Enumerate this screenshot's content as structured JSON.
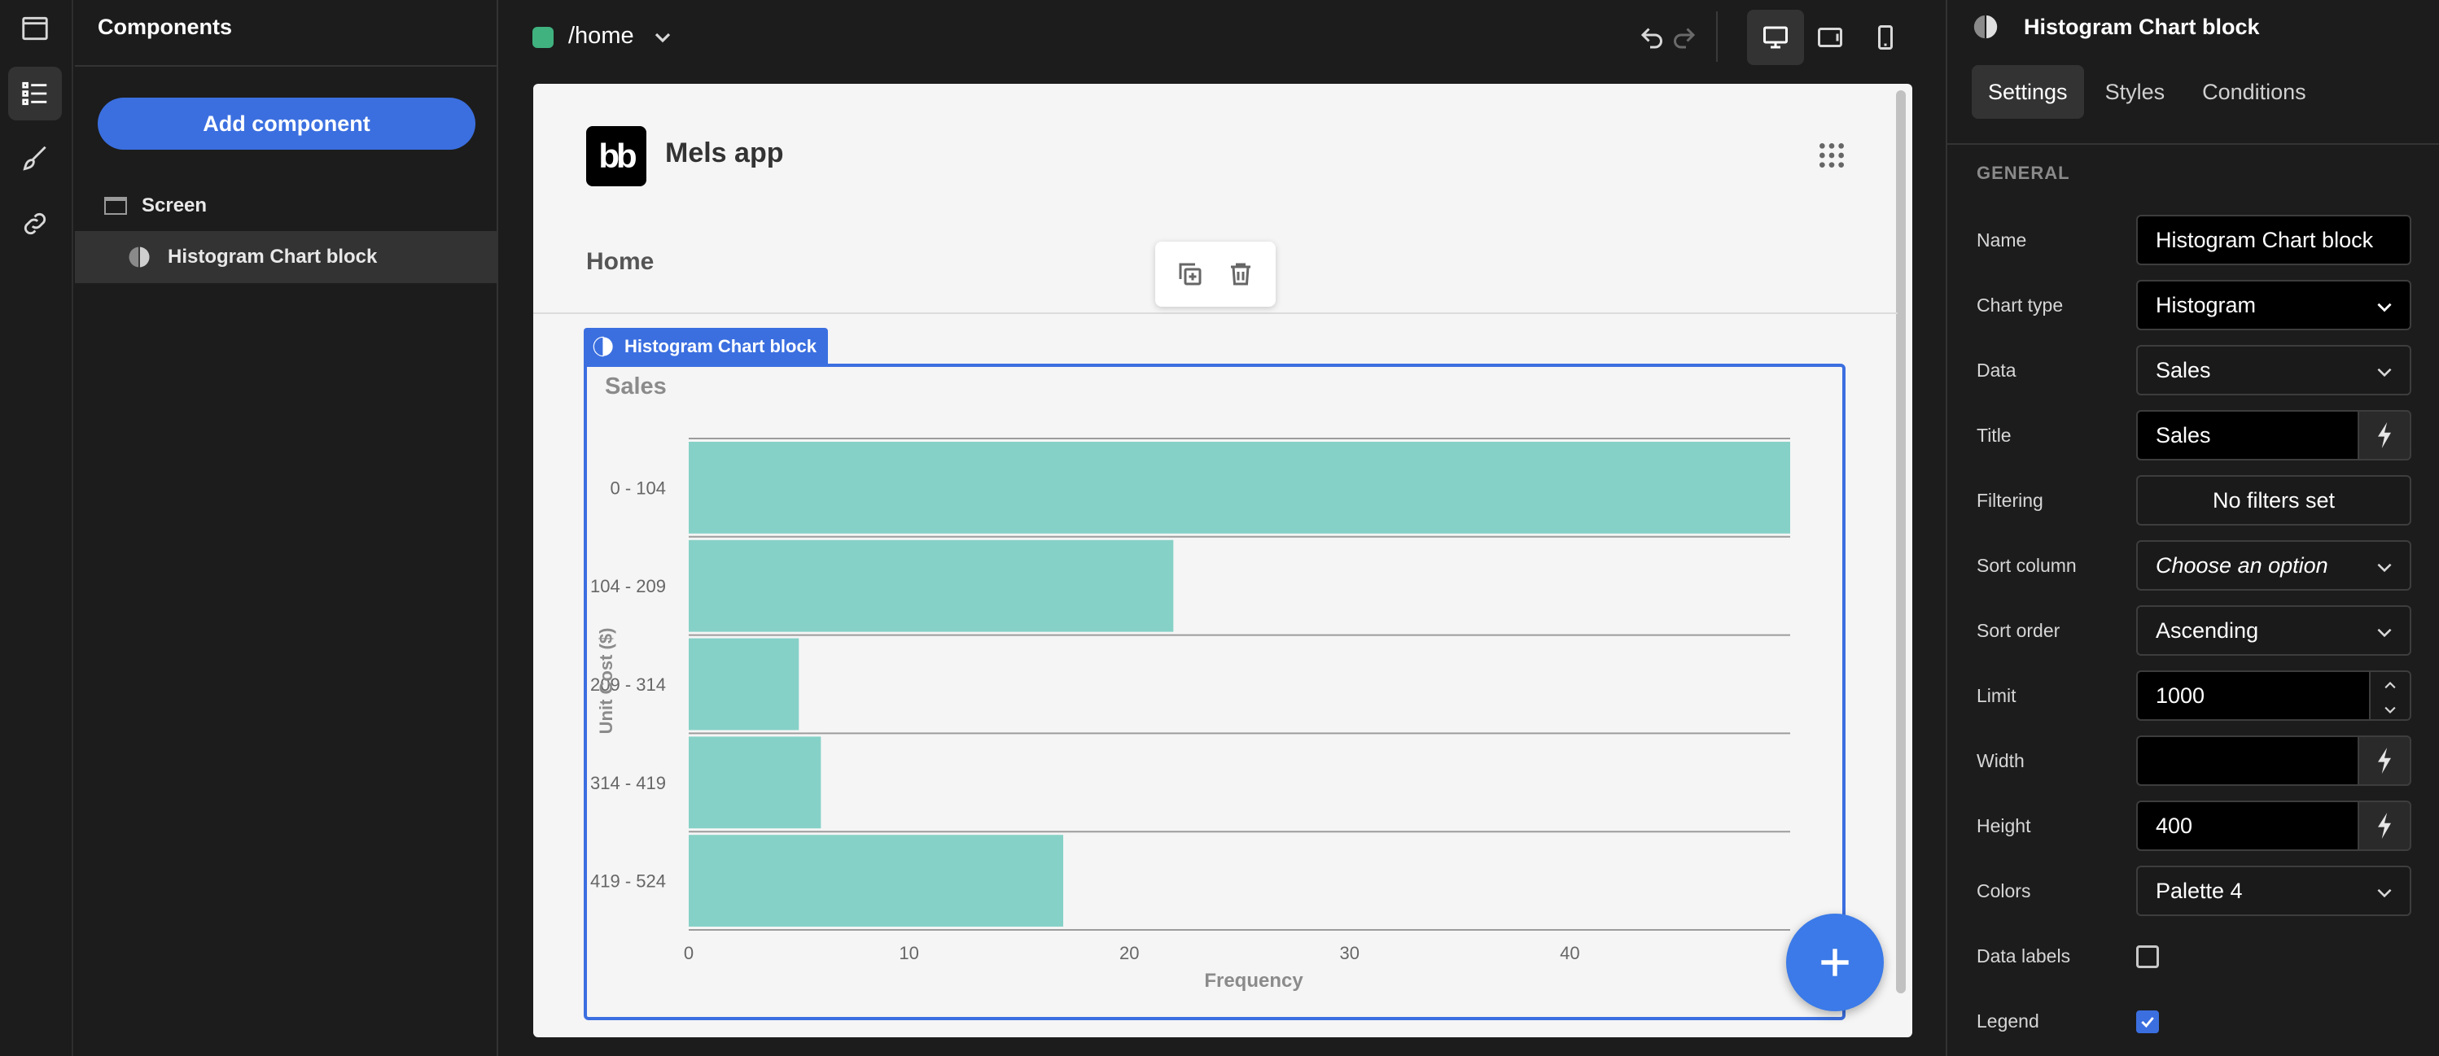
{
  "components_panel": {
    "title": "Components",
    "add_button": "Add component",
    "tree": [
      {
        "label": "Screen",
        "icon": "screen-icon"
      },
      {
        "label": "Histogram Chart block",
        "icon": "chart-icon"
      }
    ]
  },
  "topbar": {
    "route": "/home",
    "route_color": "#3fb27f"
  },
  "app": {
    "logo": "bb",
    "name": "Mels app",
    "nav_home": "Home",
    "block_tag": "Histogram Chart block"
  },
  "chart_data": {
    "type": "bar",
    "orientation": "horizontal",
    "title": "Sales",
    "categories": [
      "0 - 104",
      "104 - 209",
      "209 - 314",
      "314 - 419",
      "419 - 524"
    ],
    "values": [
      50,
      22,
      5,
      6,
      17
    ],
    "xlabel": "Frequency",
    "ylabel": "Unit Cost ($)",
    "xlim": [
      0,
      50
    ],
    "xticks": [
      0,
      10,
      20,
      30,
      40
    ],
    "bar_color": "#86d1c7",
    "grid": true
  },
  "settings": {
    "header": "Histogram Chart block",
    "tabs": [
      "Settings",
      "Styles",
      "Conditions"
    ],
    "section": "GENERAL",
    "rows": {
      "name": {
        "label": "Name",
        "value": "Histogram Chart block"
      },
      "chart_type": {
        "label": "Chart type",
        "value": "Histogram"
      },
      "data": {
        "label": "Data",
        "value": "Sales"
      },
      "title": {
        "label": "Title",
        "value": "Sales"
      },
      "filtering": {
        "label": "Filtering",
        "value": "No filters set"
      },
      "sort_column": {
        "label": "Sort column",
        "value": "Choose an option"
      },
      "sort_order": {
        "label": "Sort order",
        "value": "Ascending"
      },
      "limit": {
        "label": "Limit",
        "value": "1000"
      },
      "width": {
        "label": "Width",
        "value": ""
      },
      "height": {
        "label": "Height",
        "value": "400"
      },
      "colors": {
        "label": "Colors",
        "value": "Palette 4"
      },
      "data_labels": {
        "label": "Data labels",
        "checked": false
      },
      "legend": {
        "label": "Legend",
        "checked": true
      }
    }
  },
  "accent_color": "#3b6fe0"
}
